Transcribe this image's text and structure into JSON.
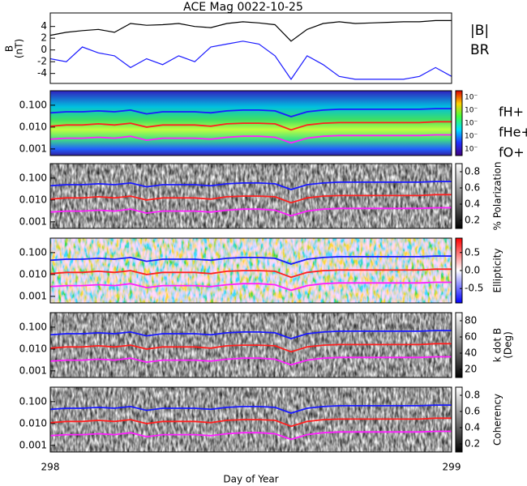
{
  "chart_data": [
    {
      "type": "line",
      "title": "ACE Mag 0022-10-25",
      "y_label": [
        "B",
        "(nT)"
      ],
      "x": [
        298,
        298.04,
        298.08,
        298.12,
        298.16,
        298.2,
        298.24,
        298.28,
        298.32,
        298.36,
        298.4,
        298.44,
        298.48,
        298.52,
        298.56,
        298.6,
        298.64,
        298.68,
        298.72,
        298.76,
        298.8,
        298.84,
        298.88,
        298.92,
        298.96,
        299
      ],
      "xlim": [
        298,
        299
      ],
      "ylim": [
        -5.7,
        6.3
      ],
      "yticks": [
        -4,
        -2,
        0,
        2,
        4
      ],
      "series": [
        {
          "name": "|B|",
          "color": "#000000",
          "values": [
            2.5,
            3.0,
            3.3,
            3.5,
            3.0,
            4.5,
            4.2,
            4.3,
            4.5,
            4.0,
            3.8,
            4.5,
            4.8,
            4.6,
            4.3,
            1.5,
            3.5,
            4.5,
            4.8,
            4.5,
            4.6,
            4.7,
            4.8,
            4.8,
            5.0,
            5.0
          ]
        },
        {
          "name": "BR",
          "color": "#1a1aff",
          "values": [
            -1.5,
            -2.0,
            0.5,
            -0.5,
            -1.0,
            -3.0,
            -1.5,
            -2.5,
            -1.0,
            -2.0,
            0.5,
            1.0,
            1.5,
            1.0,
            -1.0,
            -5.0,
            -1.0,
            -2.5,
            -4.5,
            -5.0,
            -5.0,
            -5.0,
            -5.0,
            -4.5,
            -3.0,
            -4.5
          ]
        }
      ]
    },
    {
      "type": "spectrogram",
      "log_y": true,
      "x": [
        298,
        298.04,
        298.08,
        298.12,
        298.16,
        298.2,
        298.24,
        298.28,
        298.32,
        298.36,
        298.4,
        298.44,
        298.48,
        298.52,
        298.56,
        298.6,
        298.64,
        298.68,
        298.72,
        298.76,
        298.8,
        298.84,
        298.88,
        298.92,
        298.96,
        299
      ],
      "xlim": [
        298,
        299
      ],
      "xticks": [
        298,
        299
      ],
      "x_label": "Day of Year",
      "ylim": [
        0.0005,
        0.46
      ],
      "yticks": [
        0.001,
        {
          "value": 0.01,
          "label": "0.010"
        },
        {
          "value": 0.1,
          "label": "0.100"
        }
      ],
      "series": [
        {
          "name": "fH+",
          "color": "#1a1aff",
          "values": [
            0.045,
            0.05,
            0.05,
            0.055,
            0.05,
            0.06,
            0.04,
            0.05,
            0.05,
            0.05,
            0.045,
            0.055,
            0.06,
            0.06,
            0.055,
            0.03,
            0.05,
            0.06,
            0.065,
            0.065,
            0.065,
            0.065,
            0.065,
            0.065,
            0.07,
            0.07
          ]
        },
        {
          "name": "fHe+",
          "color": "#ff2020",
          "values": [
            0.011,
            0.0125,
            0.0125,
            0.014,
            0.0125,
            0.015,
            0.01,
            0.0125,
            0.0125,
            0.0125,
            0.011,
            0.014,
            0.015,
            0.015,
            0.014,
            0.0075,
            0.0125,
            0.015,
            0.016,
            0.016,
            0.016,
            0.016,
            0.016,
            0.016,
            0.0175,
            0.0175
          ]
        },
        {
          "name": "fO+",
          "color": "#ff20ff",
          "values": [
            0.0028,
            0.0031,
            0.0031,
            0.0034,
            0.0031,
            0.0038,
            0.0025,
            0.0031,
            0.0031,
            0.0031,
            0.0028,
            0.0034,
            0.0038,
            0.0038,
            0.0034,
            0.0019,
            0.0031,
            0.0038,
            0.0041,
            0.0041,
            0.0041,
            0.0041,
            0.0041,
            0.0041,
            0.0044,
            0.0044
          ]
        }
      ],
      "panels": [
        {
          "colormap": "rainbow",
          "colorbar_tick_labels": [
            "10⁻",
            "10⁻",
            "10⁻",
            "10⁻",
            "10⁻"
          ]
        },
        {
          "colormap": "gray",
          "clim": [
            0.1,
            0.9
          ],
          "colorbar_ticks": [
            0.2,
            0.4,
            0.6,
            0.8
          ],
          "colorbar_label": [
            "% Polarization"
          ]
        },
        {
          "colormap": "redblue",
          "clim": [
            -0.9,
            0.9
          ],
          "colorbar_ticks": [
            -0.5,
            {
              "value": 0,
              "label": "0.0"
            },
            0.5
          ],
          "colorbar_label": [
            "Ellipticity"
          ]
        },
        {
          "colormap": "gray",
          "clim": [
            10,
            90
          ],
          "colorbar_ticks": [
            20,
            40,
            60,
            80
          ],
          "colorbar_label": [
            "k dot B",
            "(Deg)"
          ]
        },
        {
          "colormap": "gray",
          "clim": [
            0.1,
            0.9
          ],
          "colorbar_ticks": [
            0.2,
            0.4,
            0.6,
            0.8
          ],
          "colorbar_label": [
            "Coherency"
          ]
        }
      ]
    }
  ]
}
